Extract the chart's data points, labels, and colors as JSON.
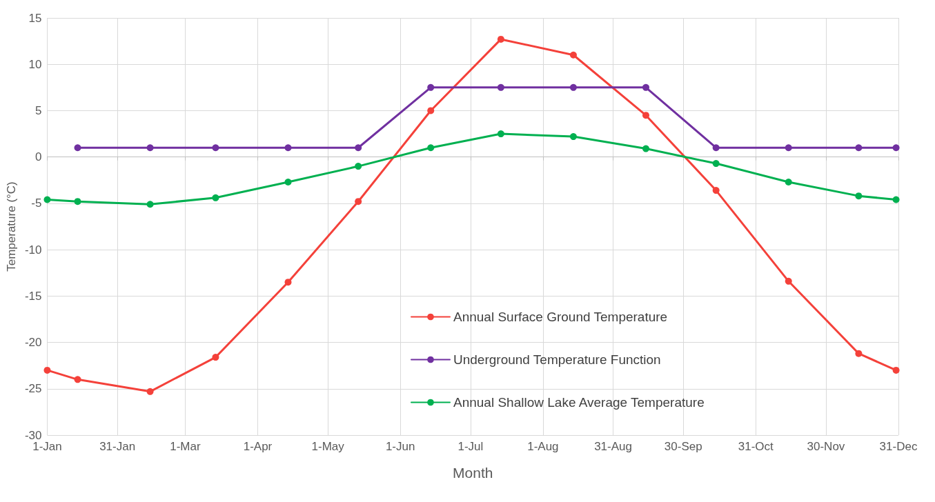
{
  "chart_data": {
    "type": "line",
    "xlabel": "Month",
    "ylabel": "Temperature (°C)",
    "x": [
      "--01-01",
      "--01-14",
      "--02-14",
      "--03-14",
      "--04-14",
      "--05-14",
      "--06-14",
      "--07-14",
      "--08-14",
      "--09-14",
      "--10-14",
      "--11-14",
      "--12-14",
      "--12-30"
    ],
    "series": [
      {
        "name": "Annual Surface Ground Temperature",
        "color": "#f4413a",
        "values": [
          -23,
          -24,
          -25.3,
          -21.6,
          -13.5,
          -4.8,
          5,
          12.7,
          11,
          4.5,
          -3.6,
          -13.4,
          -21.2,
          -23
        ]
      },
      {
        "name": "Underground Temperature Function",
        "color": "#7030a0",
        "values": [
          null,
          1,
          1,
          1,
          1,
          1,
          7.5,
          7.5,
          7.5,
          7.5,
          1,
          1,
          1,
          1
        ]
      },
      {
        "name": "Annual Shallow Lake Average Temperature",
        "color": "#00b050",
        "values": [
          -4.6,
          -4.8,
          -5.1,
          -4.4,
          -2.7,
          -1,
          1,
          2.5,
          2.2,
          0.9,
          -0.7,
          -2.7,
          -4.2,
          -4.6
        ]
      }
    ],
    "xlim": [
      "--01-01",
      "--12-31"
    ],
    "xticks": [
      {
        "value": "--01-01",
        "label": "1-Jan"
      },
      {
        "value": "--01-31",
        "label": "31-Jan"
      },
      {
        "value": "--03-01",
        "label": "1-Mar"
      },
      {
        "value": "--04-01",
        "label": "1-Apr"
      },
      {
        "value": "--05-01",
        "label": "1-May"
      },
      {
        "value": "--06-01",
        "label": "1-Jun"
      },
      {
        "value": "--07-01",
        "label": "1-Jul"
      },
      {
        "value": "--08-01",
        "label": "1-Aug"
      },
      {
        "value": "--08-31",
        "label": "31-Aug"
      },
      {
        "value": "--09-30",
        "label": "30-Sep"
      },
      {
        "value": "--10-31",
        "label": "31-Oct"
      },
      {
        "value": "--11-30",
        "label": "30-Nov"
      },
      {
        "value": "--12-31",
        "label": "31-Dec"
      }
    ],
    "ylim": [
      -30,
      15
    ],
    "yticks": [
      -30,
      -25,
      -20,
      -15,
      -10,
      -5,
      0,
      5,
      10,
      15
    ],
    "grid": true,
    "legend": "bottom",
    "marker": "circle",
    "line_style": "solid"
  }
}
